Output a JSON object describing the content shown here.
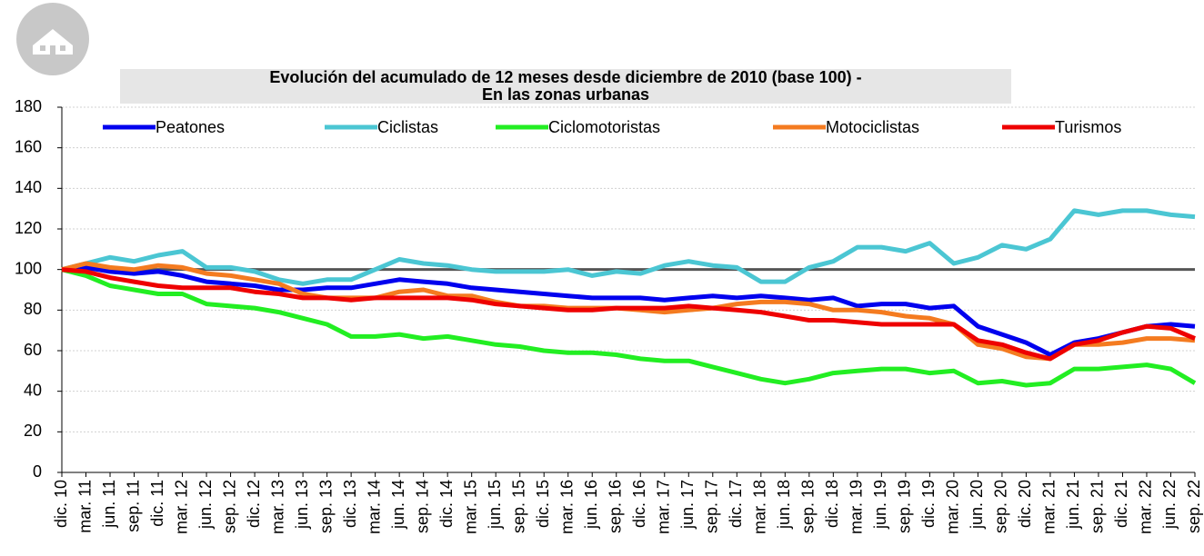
{
  "chart_data": {
    "type": "line",
    "title": [
      "Evolución del acumulado de 12 meses desde diciembre de 2010 (base 100) -",
      "En las zonas urbanas"
    ],
    "categories": [
      "dic. 10",
      "mar. 11",
      "jun. 11",
      "sep. 11",
      "dic. 11",
      "mar. 12",
      "jun. 12",
      "sep. 12",
      "dic. 12",
      "mar. 13",
      "jun. 13",
      "sep. 13",
      "dic. 13",
      "mar. 14",
      "jun. 14",
      "sep. 14",
      "dic. 14",
      "mar. 15",
      "jun. 15",
      "sep. 15",
      "dic. 15",
      "mar. 16",
      "jun. 16",
      "sep. 16",
      "dic. 16",
      "mar. 17",
      "jun. 17",
      "sep. 17",
      "dic. 17",
      "mar. 18",
      "jun. 18",
      "sep. 18",
      "dic. 18",
      "mar. 19",
      "jun. 19",
      "sep. 19",
      "dic. 19",
      "mar. 20",
      "jun. 20",
      "sep. 20",
      "dic. 20",
      "mar. 21",
      "jun. 21",
      "sep. 21",
      "dic. 21",
      "mar. 22",
      "jun. 22",
      "sep. 22"
    ],
    "series": [
      {
        "name": "Peatones",
        "color": "#0000ee",
        "values": [
          100,
          101,
          99,
          98,
          99,
          97,
          94,
          93,
          92,
          90,
          90,
          91,
          91,
          93,
          95,
          94,
          93,
          91,
          90,
          89,
          88,
          87,
          86,
          86,
          86,
          85,
          86,
          87,
          86,
          87,
          86,
          85,
          86,
          82,
          83,
          83,
          81,
          82,
          72,
          68,
          64,
          58,
          64,
          66,
          69,
          72,
          73,
          72
        ]
      },
      {
        "name": "Ciclistas",
        "color": "#4bc6d3",
        "values": [
          100,
          103,
          106,
          104,
          107,
          109,
          101,
          101,
          99,
          95,
          93,
          95,
          95,
          100,
          105,
          103,
          102,
          100,
          99,
          99,
          99,
          100,
          97,
          99,
          98,
          102,
          104,
          102,
          101,
          94,
          94,
          101,
          104,
          111,
          111,
          109,
          113,
          103,
          106,
          112,
          110,
          115,
          129,
          127,
          129,
          129,
          127,
          126
        ]
      },
      {
        "name": "Ciclomotoristas",
        "color": "#22ee22",
        "values": [
          100,
          97,
          92,
          90,
          88,
          88,
          83,
          82,
          81,
          79,
          76,
          73,
          67,
          67,
          68,
          66,
          67,
          65,
          63,
          62,
          60,
          59,
          59,
          58,
          56,
          55,
          55,
          52,
          49,
          46,
          44,
          46,
          49,
          50,
          51,
          51,
          49,
          50,
          44,
          45,
          43,
          44,
          51,
          51,
          52,
          53,
          51,
          44
        ]
      },
      {
        "name": "Motociclistas",
        "color": "#f47b20",
        "values": [
          100,
          103,
          101,
          100,
          102,
          101,
          98,
          97,
          95,
          93,
          88,
          86,
          86,
          86,
          89,
          90,
          87,
          87,
          84,
          82,
          82,
          81,
          81,
          81,
          80,
          79,
          80,
          81,
          83,
          84,
          84,
          83,
          80,
          80,
          79,
          77,
          76,
          73,
          63,
          61,
          57,
          56,
          63,
          63,
          64,
          66,
          66,
          65
        ]
      },
      {
        "name": "Turismos",
        "color": "#ee0000",
        "values": [
          100,
          99,
          96,
          94,
          92,
          91,
          91,
          91,
          89,
          88,
          86,
          86,
          85,
          86,
          86,
          86,
          86,
          85,
          83,
          82,
          81,
          80,
          80,
          81,
          81,
          81,
          82,
          81,
          80,
          79,
          77,
          75,
          75,
          74,
          73,
          73,
          73,
          73,
          65,
          63,
          59,
          56,
          63,
          65,
          69,
          72,
          71,
          66
        ]
      }
    ],
    "reference_line": 100,
    "ylim": [
      0,
      180
    ],
    "yticks": [
      0,
      20,
      40,
      60,
      80,
      100,
      120,
      140,
      160,
      180
    ],
    "grid": true,
    "legend": "top"
  }
}
